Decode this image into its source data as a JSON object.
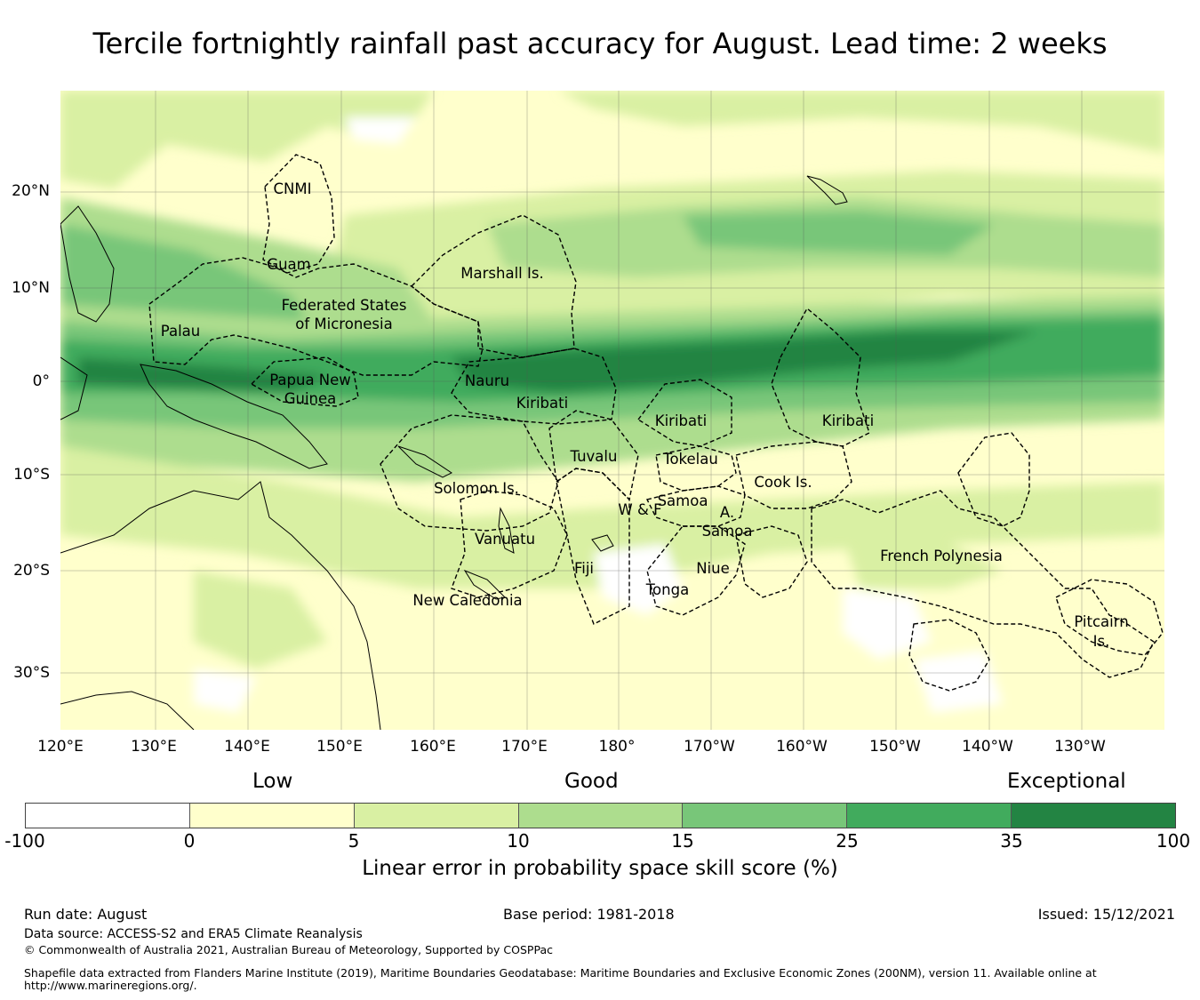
{
  "title": "Tercile fortnightly rainfall past accuracy for August. Lead time: 2 weeks",
  "map": {
    "lat_labels": [
      "20°N",
      "10°N",
      "0°",
      "10°S",
      "20°S",
      "30°S"
    ],
    "lon_labels": [
      "120°E",
      "130°E",
      "140°E",
      "150°E",
      "160°E",
      "170°E",
      "180°",
      "170°W",
      "160°W",
      "150°W",
      "140°W",
      "130°W"
    ],
    "regions": {
      "cnmi": "CNMI",
      "guam": "Guam",
      "marshall": "Marshall Is.",
      "fsm_1": "Federated States",
      "fsm_2": "of Micronesia",
      "palau": "Palau",
      "png_1": "Papua New",
      "png_2": "Guinea",
      "nauru": "Nauru",
      "kiribati_w": "Kiribati",
      "kiribati_c": "Kiribati",
      "kiribati_e": "Kiribati",
      "tuvalu": "Tuvalu",
      "tokelau": "Tokelau",
      "solomon": "Solomon Is.",
      "samoa": "Samoa",
      "wf": "W & F",
      "asamoa_1": "A.",
      "asamoa_2": "Samoa",
      "cook": "Cook Is.",
      "vanuatu": "Vanuatu",
      "fiji": "Fiji",
      "niue": "Niue",
      "tonga": "Tonga",
      "newcal": "New Caledonia",
      "frenchpoly": "French Polynesia",
      "pitcairn_1": "Pitcairn",
      "pitcairn_2": "Is."
    }
  },
  "colorbar": {
    "categories": [
      "Low",
      "Good",
      "Exceptional"
    ],
    "ticks": [
      "-100",
      "0",
      "5",
      "10",
      "15",
      "25",
      "35",
      "100"
    ],
    "colors": [
      "#ffffff",
      "#ffffcc",
      "#d9f0a3",
      "#addd8e",
      "#78c679",
      "#41ab5d",
      "#238443"
    ],
    "label": "Linear error in probability space skill score (%)"
  },
  "footer": {
    "run_date": "Run date: August",
    "base_period": "Base period: 1981-2018",
    "issued": "Issued: 15/12/2021",
    "data_source": "Data source: ACCESS-S2 and ERA5 Climate Reanalysis",
    "copyright": "© Commonwealth of Australia 2021, Australian Bureau of Meteorology, Supported by COSPPac",
    "shapefile_1": "Shapefile data extracted from Flanders Marine Institute (2019), Maritime Boundaries Geodatabase: Maritime Boundaries and Exclusive Economic Zones (200NM), version 11. Available online at",
    "shapefile_2": "http://www.marineregions.org/."
  }
}
